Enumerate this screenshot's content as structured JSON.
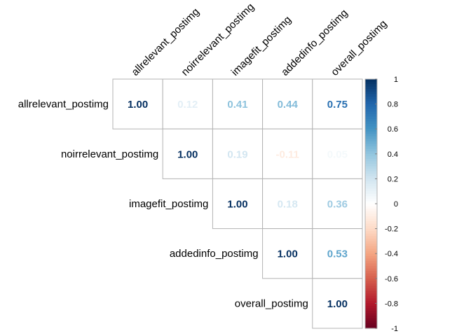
{
  "chart_data": {
    "type": "heatmap",
    "variables": [
      "allrelevant_postimg",
      "noirrelevant_postimg",
      "imagefit_postimg",
      "addedinfo_postimg",
      "overall_postimg"
    ],
    "layout": "upper-triangle",
    "values": [
      [
        1.0,
        0.12,
        0.41,
        0.44,
        0.75
      ],
      [
        null,
        1.0,
        0.19,
        -0.11,
        0.05
      ],
      [
        null,
        null,
        1.0,
        0.18,
        0.36
      ],
      [
        null,
        null,
        null,
        1.0,
        0.53
      ],
      [
        null,
        null,
        null,
        null,
        1.0
      ]
    ],
    "value_labels": [
      [
        "1.00",
        "0.12",
        "0.41",
        "0.44",
        "0.75"
      ],
      [
        "",
        "1.00",
        "0.19",
        "-0.11",
        "0.05"
      ],
      [
        "",
        "",
        "1.00",
        "0.18",
        "0.36"
      ],
      [
        "",
        "",
        "",
        "1.00",
        "0.53"
      ],
      [
        "",
        "",
        "",
        "",
        "1.00"
      ]
    ],
    "colorbar": {
      "range": [
        -1,
        1
      ],
      "ticks": [
        "1",
        "0.8",
        "0.6",
        "0.4",
        "0.2",
        "0",
        "-0.2",
        "-0.4",
        "-0.6",
        "-0.8",
        "-1"
      ],
      "colors": [
        "#67001f",
        "#b2182b",
        "#d6604d",
        "#f4a582",
        "#fddbc7",
        "#ffffff",
        "#d1e5f0",
        "#92c5de",
        "#4393c3",
        "#2166ac",
        "#053061"
      ]
    },
    "grid": true,
    "legend": "right"
  }
}
